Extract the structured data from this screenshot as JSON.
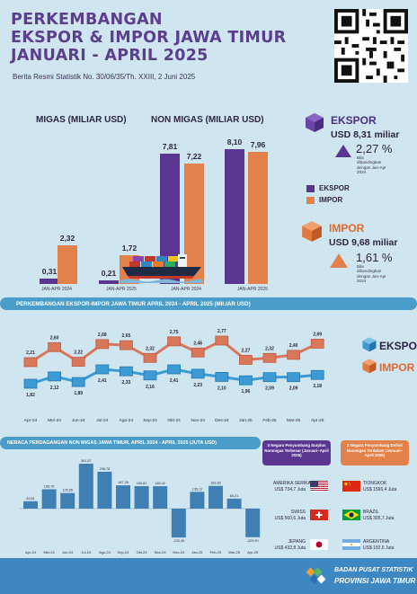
{
  "header": {
    "title_line1": "PERKEMBANGAN",
    "title_line2": "EKSPOR & IMPOR JAWA TIMUR",
    "title_line3": "JANUARI - APRIL 2025",
    "subtitle": "Berita Resmi Statistik  No. 30/06/35/Th. XXIII, 2 Juni 2025"
  },
  "top_chart": {
    "migas_label": "MIGAS (MILIAR USD)",
    "nonmigas_label": "NON MIGAS (MILIAR USD)",
    "period_2024": "JAN-APR  2024",
    "period_2025": "JAN-APR  2025"
  },
  "kpi": {
    "ekspor_title": "EKSPOR",
    "ekspor_value": "USD 8,31 miliar",
    "ekspor_pct": "2,27 %",
    "ekspor_note": "Bila dibandingkan dengan Jan-Apr 2024",
    "impor_title": "IMPOR",
    "impor_value": "USD 9,68 miliar",
    "impor_pct": "1,61 %",
    "impor_note": "Bila dibandingkan dengan Jan-Apr 2024",
    "legend_ekspor": "EKSPOR",
    "legend_impor": "IMPOR"
  },
  "band1": "PERKEMBANGAN EKSPOR-IMPOR JAWA TIMUR APRIL 2024 - APRIL 2025 (MILIAR USD)",
  "line_legend": {
    "ekspor": "EKSPOR",
    "impor": "IMPOR"
  },
  "band2": "NERACA PERDAGANGAN NON MIGAS JAWA TIMUR, APRIL 2024 - APRIL 2025 (JUTA USD)",
  "surplus": {
    "pill": "3 Negara Penyumbang Surplus Nonmigas Terbesar (Januari–April 2025)",
    "countries": [
      {
        "name": "AMERIKA SERIKAT",
        "value": "US$ 734,7 Juta"
      },
      {
        "name": "SWISS",
        "value": "US$ 560,6 Juta"
      },
      {
        "name": "JEPANG",
        "value": "US$ 432,8 Juta"
      }
    ]
  },
  "defisit": {
    "pill": "3 Negara Penyumbang Defisit Nonmigas Terdalam (Januari–April 2025)",
    "countries": [
      {
        "name": "TIONGKOK",
        "value": "US$ 1566,4 Juta"
      },
      {
        "name": "BRAZIL",
        "value": "US$ 305,7 Juta"
      },
      {
        "name": "ARGENTINA",
        "value": "US$ 192,6 Juta"
      }
    ]
  },
  "footer": {
    "line1": "BADAN PUSAT STATISTIK",
    "line2": "PROVINSI JAWA TIMUR"
  },
  "colors": {
    "ekspor": "#5b3592",
    "impor": "#e2824a",
    "line_ekspor": "#3c9bd4",
    "line_impor": "#d9775b",
    "bar_blue": "#3f7fb3"
  },
  "chart_data": [
    {
      "type": "bar",
      "title": "MIGAS (MILIAR USD)",
      "categories": [
        "JAN-APR  2024",
        "JAN-APR  2025"
      ],
      "series": [
        {
          "name": "EKSPOR",
          "values": [
            0.31,
            0.21
          ],
          "labels": [
            "0,31",
            "0,21"
          ]
        },
        {
          "name": "IMPOR",
          "values": [
            2.32,
            1.72
          ],
          "labels": [
            "2,32",
            "1,72"
          ]
        }
      ]
    },
    {
      "type": "bar",
      "title": "NON MIGAS (MILIAR USD)",
      "categories": [
        "JAN-APR  2024",
        "JAN-APR  2025"
      ],
      "series": [
        {
          "name": "EKSPOR",
          "values": [
            7.81,
            8.1
          ],
          "labels": [
            "7,81",
            "8,10"
          ]
        },
        {
          "name": "IMPOR",
          "values": [
            7.22,
            7.96
          ],
          "labels": [
            "7,22",
            "7,96"
          ]
        }
      ]
    },
    {
      "type": "line",
      "title": "PERKEMBANGAN EKSPOR-IMPOR JAWA TIMUR APRIL 2024 - APRIL 2025 (MILIAR USD)",
      "categories": [
        "Apr-24",
        "Mei-24",
        "Jun-24",
        "Jul-24",
        "Agu-24",
        "Sep-24",
        "Okt-24",
        "Nov-24",
        "Des-24",
        "Jan-25",
        "Feb-25",
        "Mar-25",
        "Apr-25"
      ],
      "series": [
        {
          "name": "EKSPOR",
          "values": [
            1.82,
            2.12,
            1.89,
            2.41,
            2.33,
            2.16,
            2.41,
            2.23,
            2.1,
            1.96,
            2.09,
            2.09,
            2.18
          ],
          "labels": [
            "1,82",
            "2,12",
            "1,89",
            "2,41",
            "2,33",
            "2,16",
            "2,41",
            "2,23",
            "2,10",
            "1,96",
            "2,09",
            "2,09",
            "2,18"
          ]
        },
        {
          "name": "IMPOR",
          "values": [
            2.21,
            2.6,
            2.22,
            2.68,
            2.65,
            2.32,
            2.75,
            2.46,
            2.77,
            2.27,
            2.32,
            2.4,
            2.69
          ],
          "labels": [
            "2,21",
            "2,60",
            "2,22",
            "2,68",
            "2,65",
            "2,32",
            "2,75",
            "2,46",
            "2,77",
            "2,27",
            "2,32",
            "2,40",
            "2,69"
          ]
        }
      ]
    },
    {
      "type": "bar",
      "title": "NERACA PERDAGANGAN NON MIGAS JAWA TIMUR, APRIL 2024 - APRIL 2025 (JUTA USD)",
      "categories": [
        "Apr-24",
        "Mei-24",
        "Jun-24",
        "Jul-24",
        "Agu-24",
        "Sep-24",
        "Okt-24",
        "Nov-24",
        "Des-24",
        "Jan-25",
        "Feb-25",
        "Mar-25",
        "Apr-25"
      ],
      "series": [
        {
          "name": "Neraca",
          "values": [
            59.61,
            155.75,
            125.55,
            361.57,
            296.78,
            187.39,
            180.81,
            180.42,
            -232.46,
            135.11,
            182.82,
            80.21,
            -229.9
          ],
          "labels": [
            "59,61",
            "155,75",
            "125,55",
            "361,57",
            "296,78",
            "187,39",
            "180,81",
            "180,42",
            "-232,46",
            "135,11",
            "182,82",
            "80,21",
            "-229,90"
          ]
        }
      ]
    }
  ]
}
